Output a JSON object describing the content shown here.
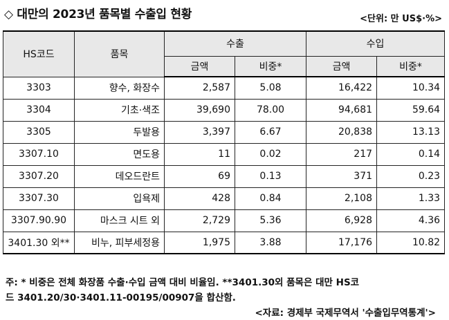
{
  "title": "◇ 대만의 2023년 품목별 수출입 현황",
  "unit": "<단위: 만 US$·%>",
  "headers": {
    "hs": "HS코드",
    "item": "품목",
    "export": "수출",
    "import": "수입",
    "amount": "금액",
    "share": "비중*"
  },
  "rows": [
    {
      "hs": "3303",
      "item": "향수, 화장수",
      "exp_amount": "2,587",
      "exp_share": "5.08",
      "imp_amount": "16,422",
      "imp_share": "10.34"
    },
    {
      "hs": "3304",
      "item": "기초·색조",
      "exp_amount": "39,690",
      "exp_share": "78.00",
      "imp_amount": "94,681",
      "imp_share": "59.64"
    },
    {
      "hs": "3305",
      "item": "두발용",
      "exp_amount": "3,397",
      "exp_share": "6.67",
      "imp_amount": "20,838",
      "imp_share": "13.13"
    },
    {
      "hs": "3307.10",
      "item": "면도용",
      "exp_amount": "11",
      "exp_share": "0.02",
      "imp_amount": "217",
      "imp_share": "0.14"
    },
    {
      "hs": "3307.20",
      "item": "데오드란트",
      "exp_amount": "69",
      "exp_share": "0.13",
      "imp_amount": "371",
      "imp_share": "0.23"
    },
    {
      "hs": "3307.30",
      "item": "입욕제",
      "exp_amount": "428",
      "exp_share": "0.84",
      "imp_amount": "2,108",
      "imp_share": "1.33"
    },
    {
      "hs": "3307.90.90",
      "item": "마스크 시트 외",
      "exp_amount": "2,729",
      "exp_share": "5.36",
      "imp_amount": "6,928",
      "imp_share": "4.36"
    },
    {
      "hs": "3401.30 외**",
      "item": "비누, 피부세정용",
      "exp_amount": "1,975",
      "exp_share": "3.88",
      "imp_amount": "17,176",
      "imp_share": "10.82"
    }
  ],
  "notes": {
    "line1": "주: * 비중은 전체 화장품 수출·수입 금액 대비 비율임. **3401.30외 품목은 대만 HS코",
    "line2": "드 3401.20/30·3401.11-00195/00907을 합산함.",
    "source": "<자료: 경제부 국제무역서 '수출입무역통계'>"
  }
}
